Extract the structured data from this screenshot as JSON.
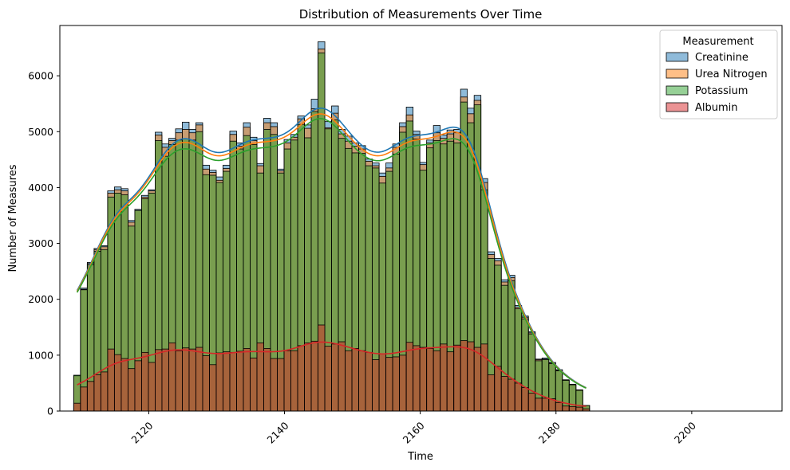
{
  "chart_data": {
    "type": "bar",
    "title": "Distribution of Measurements Over Time",
    "xlabel": "Time",
    "ylabel": "Number of Measures",
    "xlim": [
      2106.9,
      2213.3
    ],
    "ylim": [
      0,
      6900
    ],
    "x_ticks": [
      2120,
      2140,
      2160,
      2180,
      2200
    ],
    "y_ticks": [
      0,
      1000,
      2000,
      3000,
      4000,
      5000,
      6000
    ],
    "bin_start": 2108.94,
    "bin_width": 1.0,
    "legend": {
      "title": "Measurement",
      "position": "top-right"
    },
    "series": [
      {
        "name": "Creatinine",
        "color": "#1f77b4",
        "values": [
          640,
          2200,
          2660,
          2910,
          2960,
          3940,
          4010,
          3980,
          3410,
          3610,
          3860,
          3960,
          4990,
          4780,
          4880,
          5050,
          5170,
          5040,
          5160,
          4400,
          4310,
          4190,
          4400,
          5010,
          4800,
          5160,
          4900,
          4430,
          5240,
          5160,
          4330,
          4860,
          4950,
          5280,
          5120,
          5580,
          6610,
          5180,
          5460,
          5040,
          4920,
          4800,
          4750,
          4510,
          4440,
          4260,
          4440,
          4780,
          5160,
          5440,
          5010,
          4450,
          4850,
          5110,
          4940,
          5030,
          5040,
          5760,
          5420,
          5650,
          4160,
          2850,
          2730,
          2350,
          2430,
          1890,
          1700,
          1420,
          930,
          950,
          870,
          740,
          560,
          480,
          380,
          100
        ]
      },
      {
        "name": "Urea Nitrogen",
        "color": "#ff7f0e",
        "values": [
          630,
          2180,
          2640,
          2890,
          2940,
          3900,
          3960,
          3940,
          3380,
          3590,
          3830,
          3940,
          4940,
          4720,
          4840,
          4980,
          5040,
          4980,
          5120,
          4330,
          4270,
          4130,
          4340,
          4950,
          4740,
          5080,
          4840,
          4390,
          5160,
          5090,
          4300,
          4800,
          4900,
          5230,
          5060,
          5410,
          6480,
          5070,
          5330,
          4960,
          4830,
          4740,
          4690,
          4470,
          4390,
          4200,
          4350,
          4720,
          5090,
          5300,
          4950,
          4410,
          4800,
          4980,
          4880,
          4960,
          4980,
          5620,
          5320,
          5560,
          4090,
          2800,
          2690,
          2310,
          2390,
          1860,
          1680,
          1400,
          920,
          930,
          860,
          730,
          550,
          470,
          380,
          100
        ]
      },
      {
        "name": "Potassium",
        "color": "#2ca02c",
        "values": [
          640,
          2170,
          2620,
          2860,
          2890,
          3830,
          3900,
          3870,
          3310,
          3590,
          3800,
          3900,
          4840,
          4560,
          4770,
          4850,
          4870,
          4850,
          5000,
          4230,
          4220,
          4090,
          4290,
          4830,
          4690,
          4930,
          4770,
          4260,
          5040,
          4950,
          4260,
          4690,
          4850,
          5130,
          4890,
          5360,
          6410,
          5050,
          5210,
          4880,
          4700,
          4620,
          4610,
          4390,
          4350,
          4080,
          4290,
          4600,
          4990,
          5190,
          4870,
          4310,
          4710,
          4840,
          4780,
          4830,
          4800,
          5530,
          5160,
          5480,
          3960,
          2730,
          2610,
          2250,
          2330,
          1830,
          1650,
          1380,
          900,
          920,
          850,
          720,
          550,
          470,
          370,
          100
        ]
      },
      {
        "name": "Albumin",
        "color": "#d62728",
        "values": [
          140,
          430,
          530,
          650,
          700,
          1110,
          1010,
          940,
          760,
          900,
          1050,
          870,
          1100,
          1110,
          1220,
          1080,
          1130,
          1110,
          1140,
          990,
          830,
          1040,
          1060,
          1050,
          1070,
          1120,
          950,
          1220,
          1120,
          940,
          940,
          1080,
          1080,
          1170,
          1220,
          1250,
          1540,
          1160,
          1200,
          1240,
          1080,
          1120,
          1080,
          1050,
          920,
          1020,
          960,
          970,
          1000,
          1230,
          1170,
          1140,
          1120,
          1080,
          1200,
          1060,
          1180,
          1260,
          1240,
          1140,
          1200,
          650,
          800,
          620,
          570,
          500,
          420,
          320,
          230,
          230,
          220,
          150,
          90,
          80,
          70,
          40
        ]
      }
    ]
  }
}
